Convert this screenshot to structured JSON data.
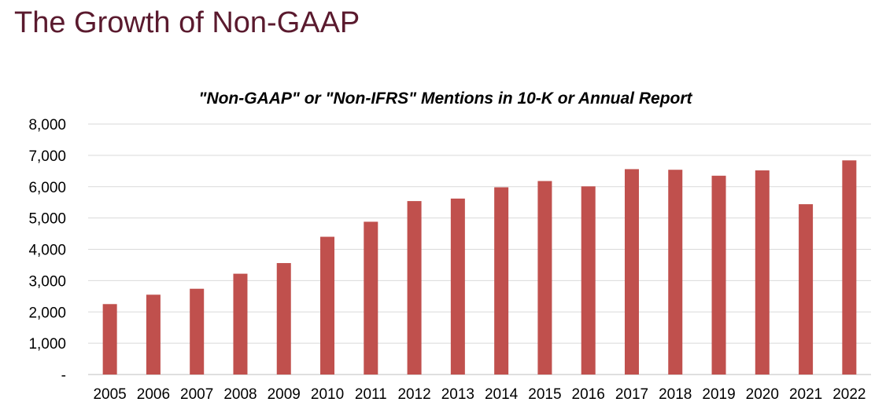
{
  "slide": {
    "title": "The Growth of Non-GAAP"
  },
  "chart_data": {
    "type": "bar",
    "title": "\"Non-GAAP\" or \"Non-IFRS\" Mentions in 10-K or Annual Report",
    "xlabel": "",
    "ylabel": "",
    "categories": [
      "2005",
      "2006",
      "2007",
      "2008",
      "2009",
      "2010",
      "2011",
      "2012",
      "2013",
      "2014",
      "2015",
      "2016",
      "2017",
      "2018",
      "2019",
      "2020",
      "2021",
      "2022"
    ],
    "values": [
      2250,
      2550,
      2740,
      3220,
      3560,
      4400,
      4880,
      5540,
      5620,
      5980,
      6180,
      6010,
      6560,
      6540,
      6350,
      6520,
      5440,
      6840
    ],
    "ylim": [
      0,
      8000
    ],
    "yticks": [
      0,
      1000,
      2000,
      3000,
      4000,
      5000,
      6000,
      7000,
      8000
    ],
    "ytick_labels": [
      "-",
      "1,000",
      "2,000",
      "3,000",
      "4,000",
      "5,000",
      "6,000",
      "7,000",
      "8,000"
    ],
    "bar_color": "#c0504d",
    "grid": true,
    "legend": "none"
  }
}
